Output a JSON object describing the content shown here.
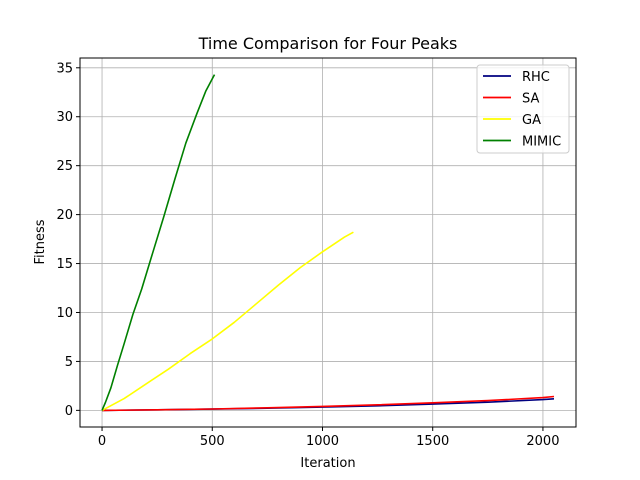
{
  "chart_data": {
    "type": "line",
    "title": "Time Comparison for Four Peaks",
    "xlabel": "Iteration",
    "ylabel": "Fitness",
    "xlim": [
      -100,
      2150
    ],
    "ylim": [
      -1.7,
      36
    ],
    "xticks": [
      0,
      500,
      1000,
      1500,
      2000
    ],
    "yticks": [
      0,
      5,
      10,
      15,
      20,
      25,
      30,
      35
    ],
    "grid": true,
    "legend_position": "top-right",
    "series": [
      {
        "name": "RHC",
        "color": "#000080",
        "x": [
          0,
          250,
          500,
          750,
          1000,
          1250,
          1500,
          1750,
          2000,
          2050
        ],
        "y": [
          0,
          0.06,
          0.13,
          0.22,
          0.33,
          0.47,
          0.64,
          0.83,
          1.1,
          1.18
        ]
      },
      {
        "name": "SA",
        "color": "#ff0000",
        "x": [
          0,
          250,
          500,
          750,
          1000,
          1250,
          1500,
          1750,
          2000,
          2050
        ],
        "y": [
          0,
          0.06,
          0.14,
          0.26,
          0.4,
          0.57,
          0.77,
          1.0,
          1.3,
          1.42
        ]
      },
      {
        "name": "GA",
        "color": "#ffff00",
        "x": [
          0,
          100,
          200,
          300,
          400,
          500,
          600,
          700,
          800,
          900,
          1000,
          1100,
          1140
        ],
        "y": [
          0,
          1.2,
          2.7,
          4.2,
          5.8,
          7.3,
          9.0,
          10.9,
          12.8,
          14.6,
          16.2,
          17.7,
          18.2
        ]
      },
      {
        "name": "MIMIC",
        "color": "#008000",
        "x": [
          0,
          15,
          40,
          70,
          100,
          140,
          180,
          230,
          280,
          330,
          380,
          430,
          470,
          510
        ],
        "y": [
          0,
          0.8,
          2.3,
          4.6,
          6.8,
          9.8,
          12.4,
          16.1,
          19.8,
          23.6,
          27.3,
          30.3,
          32.6,
          34.3
        ]
      }
    ]
  }
}
